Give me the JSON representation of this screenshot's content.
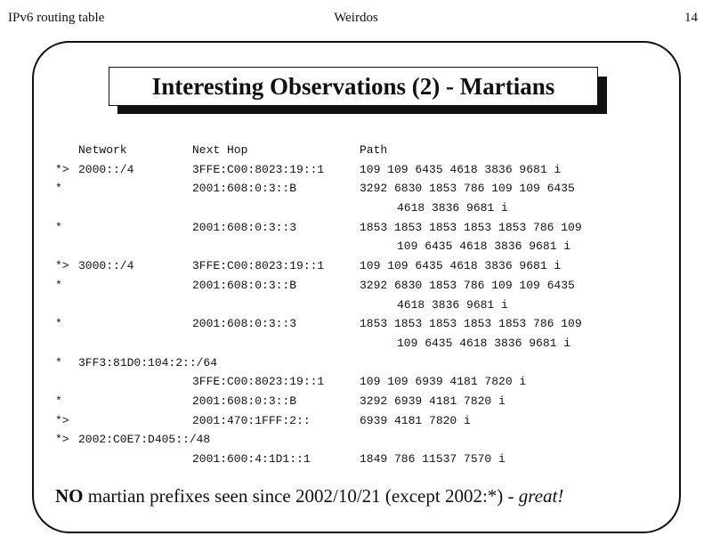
{
  "header": {
    "left": "IPv6 routing table",
    "center": "Weirdos",
    "page_number": "14"
  },
  "title": "Interesting Observations (2) - Martians",
  "table": {
    "columns": {
      "network": "Network",
      "next_hop": "Next Hop",
      "path": "Path"
    },
    "rows": [
      {
        "status": "*>",
        "network": "2000::/4",
        "next_hop": "3FFE:C00:8023:19::1",
        "path": "109 109 6435 4618 3836 9681 i",
        "path_cont": ""
      },
      {
        "status": "*",
        "network": "",
        "next_hop": "2001:608:0:3::B",
        "path": "3292 6830 1853 786 109 109 6435",
        "path_cont": "4618 3836 9681 i"
      },
      {
        "status": "*",
        "network": "",
        "next_hop": "2001:608:0:3::3",
        "path": "1853 1853 1853 1853 1853 786 109",
        "path_cont": "109 6435 4618 3836 9681 i"
      },
      {
        "status": "*>",
        "network": "3000::/4",
        "next_hop": "3FFE:C00:8023:19::1",
        "path": "109 109 6435 4618 3836 9681 i",
        "path_cont": ""
      },
      {
        "status": "*",
        "network": "",
        "next_hop": "2001:608:0:3::B",
        "path": "3292 6830 1853 786 109 109 6435",
        "path_cont": "4618 3836 9681 i"
      },
      {
        "status": "*",
        "network": "",
        "next_hop": "2001:608:0:3::3",
        "path": "1853 1853 1853 1853 1853 786 109",
        "path_cont": "109 6435 4618 3836 9681 i"
      },
      {
        "status": "*",
        "network": "3FF3:81D0:104:2::/64",
        "next_hop": "",
        "path": "",
        "path_cont": ""
      },
      {
        "status": "",
        "network": "",
        "next_hop": "3FFE:C00:8023:19::1",
        "path": "109 109 6939 4181 7820 i",
        "path_cont": ""
      },
      {
        "status": "*",
        "network": "",
        "next_hop": "2001:608:0:3::B",
        "path": "3292 6939 4181 7820 i",
        "path_cont": ""
      },
      {
        "status": "*>",
        "network": "",
        "next_hop": "2001:470:1FFF:2::",
        "path": "6939 4181 7820 i",
        "path_cont": ""
      },
      {
        "status": "*>",
        "network": "2002:C0E7:D405::/48",
        "next_hop": "",
        "path": "",
        "path_cont": ""
      },
      {
        "status": "",
        "network": "",
        "next_hop": "2001:600:4:1D1::1",
        "path": "1849 786 11537 7570 i",
        "path_cont": ""
      }
    ]
  },
  "footer": {
    "bold": "NO",
    "text": " martian prefixes seen since 2002/10/21 (except 2002:*) - ",
    "italic": "great!"
  }
}
